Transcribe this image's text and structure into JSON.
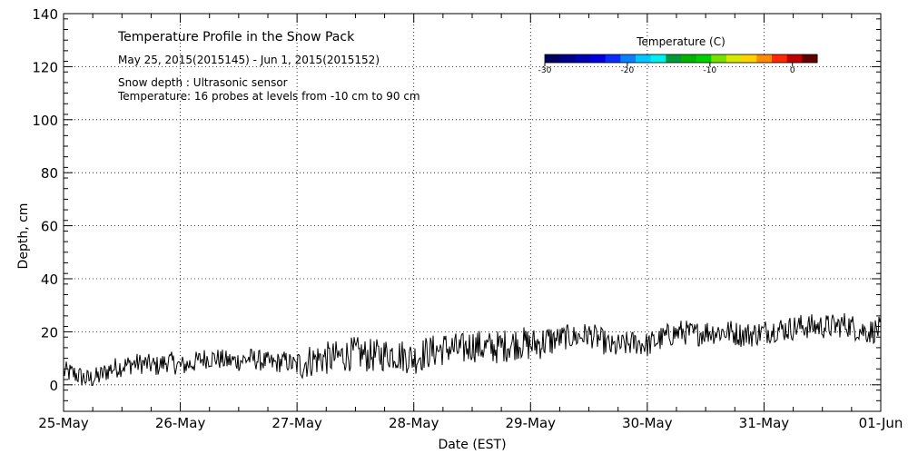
{
  "chart_data": {
    "type": "line",
    "title": "Temperature Profile in the Snow Pack",
    "subtitle": "May 25, 2015(2015145) - Jun  1, 2015(2015152)",
    "annotations": [
      "Snow depth : Ultrasonic sensor",
      "Temperature: 16 probes at levels from -10 cm to 90 cm"
    ],
    "xlabel": "Date (EST)",
    "ylabel": "Depth, cm",
    "xlim": [
      0,
      7
    ],
    "ylim": [
      -10,
      140
    ],
    "yticks": [
      0,
      20,
      40,
      60,
      80,
      100,
      120,
      140
    ],
    "x_tick_labels": [
      "25-May",
      "26-May",
      "27-May",
      "28-May",
      "29-May",
      "30-May",
      "31-May",
      "01-Jun"
    ],
    "grid": true,
    "series": [
      {
        "name": "Snow depth",
        "x": [
          0,
          0.1,
          0.2,
          0.3,
          0.4,
          0.5,
          0.6,
          0.7,
          0.8,
          0.9,
          1.0,
          1.1,
          1.2,
          1.3,
          1.4,
          1.5,
          1.6,
          1.7,
          1.8,
          1.9,
          2.0,
          2.1,
          2.2,
          2.3,
          2.4,
          2.5,
          2.6,
          2.7,
          2.8,
          2.9,
          3.0,
          3.1,
          3.2,
          3.3,
          3.4,
          3.5,
          3.6,
          3.7,
          3.8,
          3.9,
          4.0,
          4.1,
          4.2,
          4.3,
          4.4,
          4.5,
          4.6,
          4.7,
          4.8,
          4.9,
          5.0,
          5.1,
          5.2,
          5.3,
          5.4,
          5.5,
          5.6,
          5.7,
          5.8,
          5.9,
          6.0,
          6.1,
          6.2,
          6.3,
          6.4,
          6.5,
          6.6,
          6.7,
          6.8,
          6.9,
          7.0
        ],
        "y": [
          5,
          4,
          2,
          3,
          6,
          7,
          8,
          8,
          7,
          9,
          7,
          8,
          10,
          10,
          9,
          9,
          10,
          9,
          8,
          9,
          7,
          9,
          10,
          10,
          11,
          12,
          11,
          11,
          12,
          11,
          10,
          12,
          13,
          14,
          13,
          15,
          14,
          14,
          15,
          16,
          15,
          16,
          17,
          18,
          18,
          19,
          17,
          14,
          15,
          16,
          15,
          17,
          19,
          20,
          19,
          20,
          20,
          20,
          19,
          19,
          20,
          21,
          21,
          22,
          22,
          22,
          22,
          23,
          21,
          20,
          21
        ]
      }
    ],
    "colorbar": {
      "title": "Temperature (C)",
      "range": [
        -30,
        3
      ],
      "tick_labels": [
        "-30",
        "-20",
        "-10",
        "0"
      ],
      "tick_values": [
        -30,
        -20,
        -10,
        0
      ],
      "colors": [
        "#000060",
        "#00008b",
        "#0000b4",
        "#0000e0",
        "#0a2cff",
        "#0a80ff",
        "#00c8ff",
        "#00f0f0",
        "#009a3c",
        "#00b400",
        "#00d000",
        "#78e100",
        "#d8e800",
        "#ffd200",
        "#ff8c00",
        "#ff2800",
        "#c00000",
        "#640000"
      ]
    }
  }
}
